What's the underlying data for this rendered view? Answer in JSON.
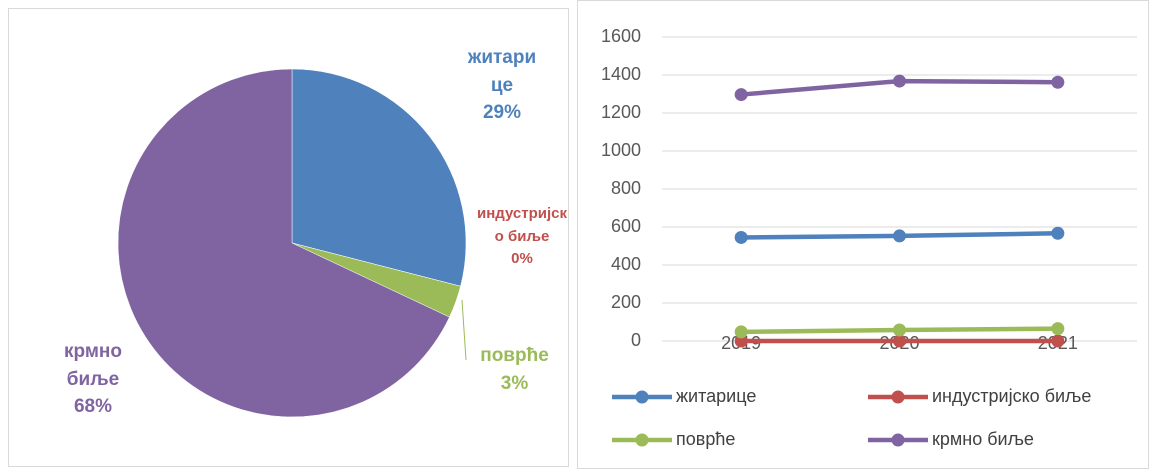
{
  "chart_data": [
    {
      "type": "pie",
      "categories": [
        "житарице",
        "индустријско биље",
        "поврће",
        "крмно биље"
      ],
      "values": [
        29,
        0,
        3,
        68
      ],
      "value_labels": [
        "29%",
        "0%",
        "3%",
        "68%"
      ],
      "colors": [
        "#4f81bd",
        "#c0504d",
        "#9bbb59",
        "#8064a2"
      ]
    },
    {
      "type": "line",
      "categories": [
        "2019",
        "2020",
        "2021"
      ],
      "series": [
        {
          "name": "житарице",
          "color": "#4f81bd",
          "values": [
            545,
            553,
            567
          ]
        },
        {
          "name": "индустријско биље",
          "color": "#c0504d",
          "values": [
            0,
            0,
            0
          ]
        },
        {
          "name": "поврће",
          "color": "#9bbb59",
          "values": [
            48,
            58,
            65
          ]
        },
        {
          "name": "крмно биље",
          "color": "#8064a2",
          "values": [
            1297,
            1368,
            1362
          ]
        }
      ],
      "ylim": [
        0,
        1600
      ],
      "yticks": [
        0,
        200,
        400,
        600,
        800,
        1000,
        1200,
        1400,
        1600
      ],
      "grid": true,
      "legend": "bottom"
    }
  ]
}
